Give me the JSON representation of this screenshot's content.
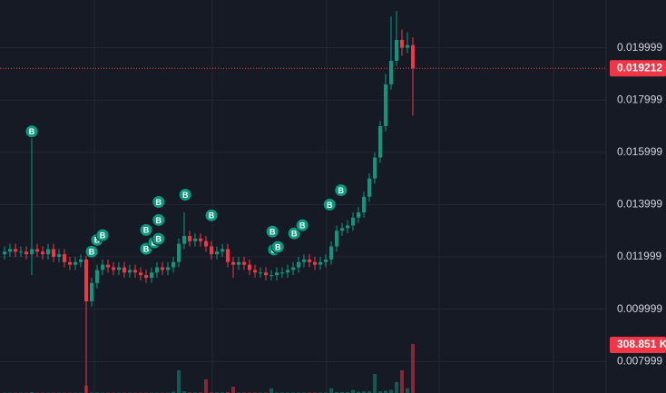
{
  "chart_data": {
    "type": "candlestick",
    "up_color": "#089981",
    "down_color": "#f23645",
    "ylim": [
      0.006792,
      0.021827
    ],
    "yticks": [
      0.007999,
      0.009999,
      0.011999,
      0.013999,
      0.015999,
      0.017999,
      0.019999
    ],
    "grid": true,
    "candles": [
      [
        0.0121,
        0.0124,
        0.0119,
        0.0122
      ],
      [
        0.0122,
        0.0125,
        0.012,
        0.0123
      ],
      [
        0.0123,
        0.0125,
        0.012,
        0.0122
      ],
      [
        0.0122,
        0.0124,
        0.012,
        0.0122
      ],
      [
        0.0122,
        0.0124,
        0.0119,
        0.0121
      ],
      [
        0.0121,
        0.0167,
        0.0113,
        0.0123
      ],
      [
        0.0123,
        0.0125,
        0.012,
        0.0122
      ],
      [
        0.0122,
        0.0124,
        0.0119,
        0.0121
      ],
      [
        0.0121,
        0.0125,
        0.0119,
        0.0123
      ],
      [
        0.0123,
        0.0125,
        0.0118,
        0.012
      ],
      [
        0.012,
        0.0123,
        0.0118,
        0.0121
      ],
      [
        0.0121,
        0.0123,
        0.0116,
        0.0118
      ],
      [
        0.0118,
        0.012,
        0.0115,
        0.0117
      ],
      [
        0.0117,
        0.012,
        0.0115,
        0.0118
      ],
      [
        0.0118,
        0.0121,
        0.0116,
        0.0119
      ],
      [
        0.0119,
        0.0121,
        0.0068,
        0.0103
      ],
      [
        0.0103,
        0.0112,
        0.0101,
        0.011
      ],
      [
        0.011,
        0.0117,
        0.0108,
        0.0115
      ],
      [
        0.0115,
        0.0119,
        0.0113,
        0.0117
      ],
      [
        0.0117,
        0.0119,
        0.0114,
        0.0116
      ],
      [
        0.0116,
        0.0118,
        0.0113,
        0.0115
      ],
      [
        0.0115,
        0.0118,
        0.0113,
        0.0116
      ],
      [
        0.0116,
        0.0118,
        0.0112,
        0.0114
      ],
      [
        0.0114,
        0.0117,
        0.0112,
        0.0115
      ],
      [
        0.0115,
        0.0117,
        0.0112,
        0.0114
      ],
      [
        0.0114,
        0.0116,
        0.0111,
        0.0113
      ],
      [
        0.0113,
        0.0115,
        0.011,
        0.0112
      ],
      [
        0.0112,
        0.0116,
        0.011,
        0.0114
      ],
      [
        0.0114,
        0.0118,
        0.0112,
        0.0116
      ],
      [
        0.0116,
        0.0118,
        0.0113,
        0.0115
      ],
      [
        0.0115,
        0.0118,
        0.0113,
        0.0116
      ],
      [
        0.0116,
        0.012,
        0.0114,
        0.0118
      ],
      [
        0.0118,
        0.0127,
        0.0116,
        0.0125
      ],
      [
        0.0125,
        0.0137,
        0.0123,
        0.0128
      ],
      [
        0.0128,
        0.013,
        0.0124,
        0.0126
      ],
      [
        0.0126,
        0.0129,
        0.0124,
        0.0127
      ],
      [
        0.0127,
        0.0129,
        0.0124,
        0.0126
      ],
      [
        0.0126,
        0.0128,
        0.0122,
        0.0124
      ],
      [
        0.0124,
        0.0126,
        0.0119,
        0.0121
      ],
      [
        0.0121,
        0.0124,
        0.0119,
        0.0122
      ],
      [
        0.0122,
        0.0125,
        0.012,
        0.0123
      ],
      [
        0.0123,
        0.0125,
        0.0116,
        0.0118
      ],
      [
        0.0118,
        0.012,
        0.0112,
        0.0117
      ],
      [
        0.0117,
        0.012,
        0.0115,
        0.0118
      ],
      [
        0.0118,
        0.012,
        0.0115,
        0.0117
      ],
      [
        0.0117,
        0.0119,
        0.0113,
        0.0115
      ],
      [
        0.0115,
        0.0117,
        0.0112,
        0.0114
      ],
      [
        0.0114,
        0.0116,
        0.0112,
        0.0114
      ],
      [
        0.0114,
        0.0116,
        0.0111,
        0.0113
      ],
      [
        0.0113,
        0.0115,
        0.0111,
        0.0113
      ],
      [
        0.0113,
        0.0116,
        0.0111,
        0.0114
      ],
      [
        0.0114,
        0.0116,
        0.0112,
        0.0114
      ],
      [
        0.0114,
        0.0117,
        0.0112,
        0.0115
      ],
      [
        0.0115,
        0.0118,
        0.0113,
        0.0116
      ],
      [
        0.0116,
        0.012,
        0.0114,
        0.0118
      ],
      [
        0.0118,
        0.0121,
        0.0116,
        0.0119
      ],
      [
        0.0119,
        0.0121,
        0.0116,
        0.0118
      ],
      [
        0.0118,
        0.012,
        0.0115,
        0.0117
      ],
      [
        0.0117,
        0.012,
        0.0115,
        0.0118
      ],
      [
        0.0118,
        0.0121,
        0.0116,
        0.0119
      ],
      [
        0.0119,
        0.0126,
        0.0117,
        0.0124
      ],
      [
        0.0124,
        0.0132,
        0.0122,
        0.013
      ],
      [
        0.013,
        0.0133,
        0.0128,
        0.0131
      ],
      [
        0.0131,
        0.0134,
        0.0129,
        0.0132
      ],
      [
        0.0132,
        0.0137,
        0.013,
        0.0135
      ],
      [
        0.0135,
        0.0139,
        0.0133,
        0.0137
      ],
      [
        0.0137,
        0.0145,
        0.0135,
        0.0143
      ],
      [
        0.0143,
        0.0152,
        0.0141,
        0.015
      ],
      [
        0.015,
        0.016,
        0.0148,
        0.0158
      ],
      [
        0.0158,
        0.0172,
        0.0156,
        0.017
      ],
      [
        0.017,
        0.019,
        0.0168,
        0.0186
      ],
      [
        0.0186,
        0.0212,
        0.0184,
        0.0195
      ],
      [
        0.0195,
        0.0214,
        0.0193,
        0.0203
      ],
      [
        0.0203,
        0.0207,
        0.0197,
        0.02
      ],
      [
        0.02,
        0.0206,
        0.0198,
        0.0201
      ],
      [
        0.0201,
        0.0204,
        0.0174,
        0.019212
      ]
    ],
    "volume": {
      "ylim": [
        0,
        2476
      ],
      "values": [
        2,
        2,
        2,
        2,
        2,
        6,
        2,
        2,
        2,
        2,
        2,
        2,
        2,
        2,
        2,
        46,
        3,
        3,
        2,
        2,
        2,
        2,
        2,
        2,
        2,
        2,
        2,
        2,
        2,
        2,
        2,
        8,
        143,
        10,
        4,
        4,
        4,
        86,
        4,
        4,
        4,
        6,
        40,
        3,
        3,
        3,
        3,
        3,
        3,
        30,
        3,
        3,
        3,
        3,
        3,
        3,
        3,
        3,
        3,
        3,
        30,
        6,
        6,
        6,
        20,
        8,
        10,
        10,
        120,
        10,
        14,
        20,
        70,
        143,
        30,
        308.851
      ],
      "last_value_label": "308.851 K"
    },
    "markers": [
      {
        "label": "B",
        "index": 5,
        "price": 0.0168
      },
      {
        "label": "B",
        "index": 16,
        "price": 0.0122
      },
      {
        "label": "B",
        "index": 17,
        "price": 0.01265
      },
      {
        "label": "B",
        "index": 18,
        "price": 0.01283
      },
      {
        "label": "B",
        "index": 26,
        "price": 0.01303
      },
      {
        "label": "B",
        "index": 26,
        "price": 0.01231
      },
      {
        "label": "B",
        "index": 27.5,
        "price": 0.01255
      },
      {
        "label": "B",
        "index": 28.3,
        "price": 0.0141
      },
      {
        "label": "B",
        "index": 28.3,
        "price": 0.01341
      },
      {
        "label": "B",
        "index": 28.3,
        "price": 0.01269
      },
      {
        "label": "B",
        "index": 33.2,
        "price": 0.01438
      },
      {
        "label": "B",
        "index": 38,
        "price": 0.01359
      },
      {
        "label": "B",
        "index": 49.2,
        "price": 0.01297
      },
      {
        "label": "B",
        "index": 49.5,
        "price": 0.01228
      },
      {
        "label": "B",
        "index": 50.2,
        "price": 0.01238
      },
      {
        "label": "B",
        "index": 53.2,
        "price": 0.0129
      },
      {
        "label": "B",
        "index": 54.7,
        "price": 0.01321
      },
      {
        "label": "B",
        "index": 59.7,
        "price": 0.014
      },
      {
        "label": "B",
        "index": 61.8,
        "price": 0.01455
      }
    ]
  }
}
